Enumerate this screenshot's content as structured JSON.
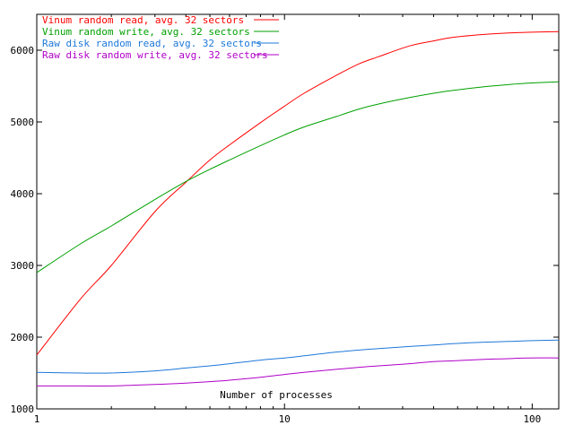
{
  "chart_data": {
    "type": "line",
    "title": "",
    "xlabel": "Number of processes",
    "ylabel": "",
    "xscale": "log",
    "xlim": [
      1,
      128
    ],
    "ylim": [
      1000,
      6500
    ],
    "x_ticks": [
      1,
      10,
      100
    ],
    "x_tick_labels": [
      "1",
      "10",
      "100"
    ],
    "y_ticks": [
      1000,
      2000,
      3000,
      4000,
      5000,
      6000
    ],
    "y_tick_labels": [
      "1000",
      "2000",
      "3000",
      "4000",
      "5000",
      "6000"
    ],
    "grid": false,
    "legend_position": "top-left",
    "x": [
      1,
      1.5,
      2,
      3,
      4,
      5,
      6,
      8,
      10,
      12,
      16,
      20,
      24,
      32,
      40,
      48,
      64,
      80,
      96,
      128
    ],
    "series": [
      {
        "name": "Vinum random read, avg. 32 sectors",
        "color": "#ff0000",
        "values": [
          1750,
          2530,
          3000,
          3750,
          4160,
          4470,
          4680,
          4990,
          5220,
          5400,
          5640,
          5810,
          5910,
          6060,
          6130,
          6180,
          6220,
          6240,
          6250,
          6260
        ]
      },
      {
        "name": "Vinum random write, avg. 32 sectors",
        "color": "#00a000",
        "values": [
          2900,
          3300,
          3550,
          3920,
          4170,
          4340,
          4470,
          4670,
          4820,
          4930,
          5070,
          5180,
          5250,
          5340,
          5400,
          5440,
          5490,
          5520,
          5540,
          5560
        ]
      },
      {
        "name": "Raw disk random read, avg. 32 sectors",
        "color": "#1e78d8",
        "values": [
          1510,
          1500,
          1500,
          1530,
          1570,
          1600,
          1630,
          1680,
          1710,
          1740,
          1790,
          1820,
          1840,
          1870,
          1890,
          1910,
          1930,
          1940,
          1950,
          1960
        ]
      },
      {
        "name": "Raw disk random write, avg. 32 sectors",
        "color": "#b000c8",
        "values": [
          1320,
          1320,
          1320,
          1340,
          1360,
          1380,
          1400,
          1440,
          1480,
          1510,
          1550,
          1580,
          1600,
          1630,
          1660,
          1670,
          1690,
          1700,
          1710,
          1710
        ]
      }
    ]
  }
}
